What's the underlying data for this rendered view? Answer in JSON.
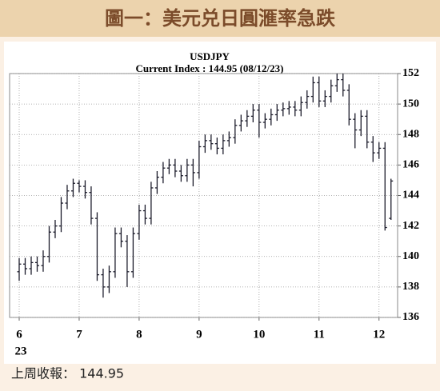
{
  "chart_data": {
    "type": "ohlc",
    "title": "圖一：美元兑日圓滙率急跌",
    "chart_title": "USDJPY",
    "subtitle": "Current Index : 144.95 (08/12/23)",
    "year_label": "23",
    "footer": "上周收報： 144.95",
    "color": "#1b1b2a",
    "grid": true,
    "xlim": [
      5.84,
      12.31
    ],
    "xticks": [
      6,
      7,
      8,
      9,
      10,
      11,
      12
    ],
    "ylim": [
      136,
      152
    ],
    "yticks": [
      136,
      138,
      140,
      142,
      144,
      146,
      148,
      150,
      152
    ],
    "x": [
      6.0,
      6.1,
      6.2,
      6.3,
      6.4,
      6.5,
      6.6,
      6.7,
      6.8,
      6.9,
      7.0,
      7.1,
      7.2,
      7.3,
      7.4,
      7.5,
      7.6,
      7.7,
      7.8,
      7.9,
      8.0,
      8.1,
      8.2,
      8.3,
      8.4,
      8.5,
      8.6,
      8.7,
      8.8,
      8.9,
      9.0,
      9.1,
      9.2,
      9.3,
      9.4,
      9.5,
      9.6,
      9.7,
      9.8,
      9.9,
      10.0,
      10.1,
      10.2,
      10.3,
      10.4,
      10.5,
      10.6,
      10.7,
      10.8,
      10.9,
      11.0,
      11.1,
      11.2,
      11.3,
      11.4,
      11.5,
      11.6,
      11.7,
      11.8,
      11.9,
      12.0,
      12.1,
      12.2
    ],
    "open": [
      139.0,
      139.5,
      139.2,
      139.6,
      139.4,
      140.0,
      141.6,
      142.0,
      143.5,
      144.3,
      144.8,
      144.6,
      144.2,
      142.5,
      138.8,
      138.0,
      139.0,
      141.5,
      141.0,
      139.0,
      141.5,
      143.0,
      142.5,
      144.5,
      145.2,
      145.8,
      146.0,
      145.6,
      145.3,
      146.0,
      145.5,
      147.2,
      147.6,
      147.4,
      147.1,
      147.6,
      147.8,
      148.6,
      148.9,
      149.2,
      149.6,
      148.8,
      149.0,
      149.3,
      149.6,
      149.7,
      149.8,
      149.6,
      150.1,
      150.5,
      151.4,
      150.2,
      150.5,
      151.2,
      151.6,
      150.9,
      149.0,
      148.3,
      149.2,
      147.5,
      146.8,
      147.1,
      142.5
    ],
    "high": [
      139.9,
      139.9,
      140.0,
      140.0,
      140.4,
      142.0,
      142.4,
      143.9,
      144.7,
      145.1,
      145.0,
      145.0,
      144.6,
      142.9,
      139.2,
      139.4,
      141.9,
      141.9,
      141.4,
      141.9,
      143.4,
      143.4,
      144.9,
      145.6,
      146.2,
      146.4,
      146.4,
      146.0,
      146.4,
      146.4,
      147.6,
      148.0,
      148.0,
      147.8,
      148.0,
      148.2,
      149.0,
      149.3,
      149.6,
      150.0,
      150.0,
      149.4,
      149.7,
      150.0,
      150.1,
      150.2,
      150.2,
      150.5,
      150.9,
      151.8,
      151.8,
      150.9,
      151.6,
      152.0,
      152.0,
      151.3,
      149.4,
      149.6,
      149.6,
      147.9,
      147.5,
      147.5,
      145.1
    ],
    "low": [
      138.4,
      138.8,
      138.8,
      139.0,
      139.0,
      139.6,
      141.2,
      141.6,
      143.1,
      143.9,
      144.2,
      143.8,
      142.1,
      138.4,
      137.3,
      137.6,
      138.6,
      140.6,
      138.0,
      138.6,
      141.1,
      142.1,
      142.1,
      144.1,
      144.8,
      145.4,
      145.2,
      144.9,
      144.9,
      144.6,
      145.1,
      146.8,
      147.0,
      146.7,
      146.7,
      147.2,
      147.4,
      148.2,
      148.5,
      148.8,
      147.8,
      148.4,
      148.6,
      148.9,
      149.2,
      149.3,
      149.2,
      149.2,
      149.7,
      150.1,
      149.8,
      149.8,
      150.1,
      150.8,
      150.5,
      148.6,
      147.1,
      147.9,
      147.1,
      146.2,
      146.4,
      141.7,
      142.4
    ],
    "close": [
      139.5,
      139.2,
      139.6,
      139.4,
      140.0,
      141.6,
      142.0,
      143.5,
      144.3,
      144.8,
      144.6,
      144.2,
      142.5,
      138.8,
      138.0,
      139.0,
      141.5,
      141.0,
      139.0,
      141.5,
      143.0,
      142.5,
      144.5,
      145.2,
      145.8,
      146.0,
      145.6,
      145.3,
      146.0,
      145.5,
      147.2,
      147.6,
      147.4,
      147.1,
      147.6,
      147.8,
      148.6,
      148.9,
      149.2,
      149.6,
      148.8,
      149.0,
      149.3,
      149.6,
      149.7,
      149.8,
      149.6,
      150.1,
      150.5,
      151.4,
      150.2,
      150.5,
      151.2,
      151.6,
      150.9,
      149.0,
      148.3,
      149.2,
      147.5,
      146.8,
      147.1,
      141.9,
      144.95
    ]
  }
}
